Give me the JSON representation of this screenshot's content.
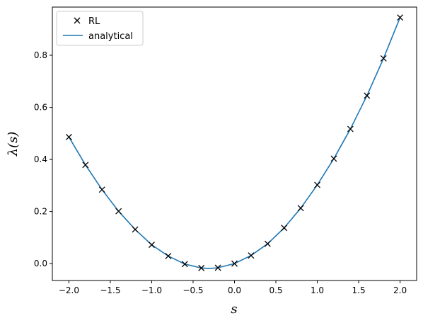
{
  "chart_data": {
    "type": "line",
    "title": "",
    "xlabel": "s",
    "ylabel": "λ(s)",
    "xlim": [
      -2.2,
      2.2
    ],
    "ylim": [
      -0.065,
      0.985
    ],
    "grid": false,
    "legend_placement": "top-left",
    "xticks": [
      -2.0,
      -1.5,
      -1.0,
      -0.5,
      0.0,
      0.5,
      1.0,
      1.5,
      2.0
    ],
    "xtick_labels": [
      "−2.0",
      "−1.5",
      "−1.0",
      "−0.5",
      "0.0",
      "0.5",
      "1.0",
      "1.5",
      "2.0"
    ],
    "yticks": [
      0.0,
      0.2,
      0.4,
      0.6,
      0.8
    ],
    "ytick_labels": [
      "0.0",
      "0.2",
      "0.4",
      "0.6",
      "0.8"
    ],
    "series": [
      {
        "name": "RL",
        "style": "markers-x",
        "color": "#000000",
        "x": [
          -2.0,
          -1.8,
          -1.6,
          -1.4,
          -1.2,
          -1.0,
          -0.8,
          -0.6,
          -0.4,
          -0.2,
          0.0,
          0.2,
          0.4,
          0.6,
          0.8,
          1.0,
          1.2,
          1.4,
          1.6,
          1.8,
          2.0
        ],
        "y": [
          0.486,
          0.379,
          0.284,
          0.201,
          0.131,
          0.072,
          0.029,
          -0.002,
          -0.017,
          -0.016,
          0.0,
          0.031,
          0.076,
          0.137,
          0.213,
          0.302,
          0.403,
          0.517,
          0.645,
          0.788,
          0.945
        ]
      },
      {
        "name": "analytical",
        "style": "line",
        "color": "#1f77b4",
        "x": [
          -2.0,
          -1.8,
          -1.6,
          -1.4,
          -1.2,
          -1.0,
          -0.8,
          -0.6,
          -0.4,
          -0.3,
          -0.2,
          0.0,
          0.2,
          0.4,
          0.6,
          0.8,
          1.0,
          1.2,
          1.4,
          1.6,
          1.8,
          2.0
        ],
        "y": [
          0.486,
          0.379,
          0.284,
          0.201,
          0.131,
          0.072,
          0.029,
          -0.002,
          -0.017,
          -0.019,
          -0.016,
          0.0,
          0.031,
          0.076,
          0.137,
          0.213,
          0.302,
          0.403,
          0.517,
          0.645,
          0.788,
          0.945
        ]
      }
    ]
  }
}
